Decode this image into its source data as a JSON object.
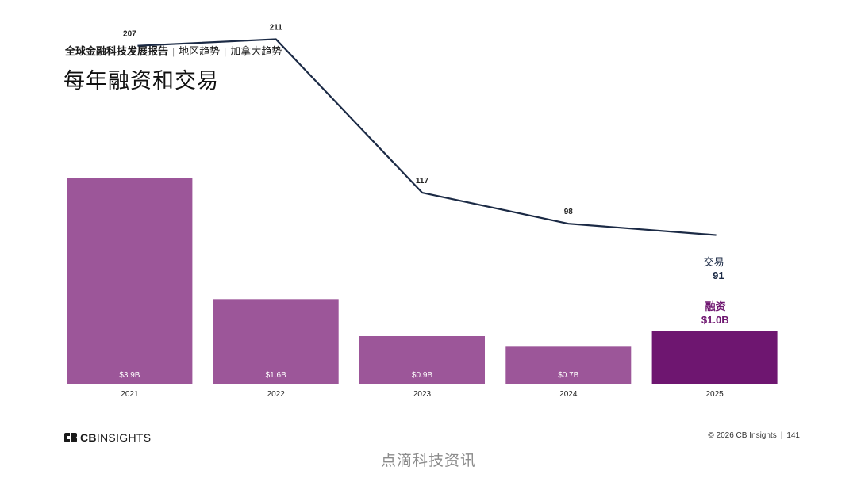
{
  "header": {
    "report_title": "全球金融科技发展报告",
    "section": "地区趋势",
    "subsection": "加拿大趋势",
    "page_title": "每年融资和交易"
  },
  "chart_data": {
    "type": "bar+line",
    "title": "每年融资和交易",
    "categories": [
      "2021",
      "2022",
      "2023",
      "2024",
      "2025"
    ],
    "series": [
      {
        "name": "融资",
        "kind": "bar",
        "unit": "$B",
        "values": [
          3.9,
          1.6,
          0.9,
          0.7,
          1.0
        ],
        "labels": [
          "$3.9B",
          "$1.6B",
          "$0.9B",
          "$0.7B",
          "$1.0B"
        ],
        "highlight_label": "$1.0B",
        "color": "#9c5699",
        "highlight_color": "#6e1670"
      },
      {
        "name": "交易",
        "kind": "line",
        "values": [
          207,
          211,
          117,
          98,
          91
        ],
        "labels": [
          "207",
          "211",
          "117",
          "98",
          "91"
        ],
        "highlight_label": "91",
        "color": "#1b2a45"
      }
    ],
    "bar_ylim": [
      0,
      3.9
    ],
    "line_ylim": [
      0,
      235
    ],
    "grid": false,
    "legend": "inline-labels at last category"
  },
  "footer": {
    "logo_bold": "CB",
    "logo_light": "INSIGHTS",
    "copyright": "© 2026 CB Insights",
    "page_number": "141"
  },
  "watermark": "点滴科技资讯",
  "colors": {
    "bar": "#9c5699",
    "bar_highlight": "#6e1670",
    "line": "#1b2a45",
    "axis": "#999999"
  }
}
